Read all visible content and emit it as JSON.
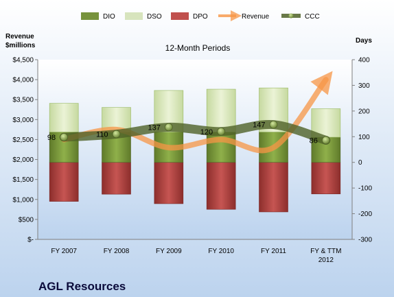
{
  "company": "AGL Resources",
  "chart_data": {
    "type": "bar",
    "title": "12-Month Periods",
    "categories": [
      "FY 2007",
      "FY 2008",
      "FY 2009",
      "FY 2010",
      "FY 2011",
      "FY & TTM 2012"
    ],
    "left_axis": {
      "label_line1": "Revenue",
      "label_line2": "$millions",
      "range": [
        0,
        4500
      ],
      "ticks": [
        {
          "v": 0,
          "t": "$-"
        },
        {
          "v": 500,
          "t": "$500"
        },
        {
          "v": 1000,
          "t": "$1,000"
        },
        {
          "v": 1500,
          "t": "$1,500"
        },
        {
          "v": 2000,
          "t": "$2,000"
        },
        {
          "v": 2500,
          "t": "$2,500"
        },
        {
          "v": 3000,
          "t": "$3,000"
        },
        {
          "v": 3500,
          "t": "$3,500"
        },
        {
          "v": 4000,
          "t": "$4,000"
        },
        {
          "v": 4500,
          "t": "$4,500"
        }
      ]
    },
    "right_axis": {
      "label": "Days",
      "range": [
        -300,
        400
      ],
      "ticks": [
        {
          "v": -300,
          "t": "-300"
        },
        {
          "v": -200,
          "t": "-200"
        },
        {
          "v": -100,
          "t": "-100"
        },
        {
          "v": 0,
          "t": "0"
        },
        {
          "v": 100,
          "t": "100"
        },
        {
          "v": 200,
          "t": "200"
        },
        {
          "v": 300,
          "t": "300"
        },
        {
          "v": 400,
          "t": "400"
        }
      ]
    },
    "series": [
      {
        "name": "DIO",
        "axis": "days",
        "color": "#77933c",
        "values": [
          118,
          118,
          118,
          118,
          118,
          98
        ]
      },
      {
        "name": "DSO",
        "axis": "days",
        "color": "#d7e4bd",
        "values": [
          112,
          96,
          162,
          167,
          172,
          111
        ]
      },
      {
        "name": "DPO",
        "axis": "days",
        "color": "#c0504d",
        "values": [
          -152,
          -124,
          -161,
          -183,
          -193,
          -123
        ]
      },
      {
        "name": "Revenue",
        "axis": "revenue",
        "color": "#f79646",
        "values": [
          2500,
          2750,
          2300,
          2500,
          2300,
          4000
        ]
      },
      {
        "name": "CCC",
        "axis": "days",
        "color": "#4f6228",
        "values": [
          98,
          110,
          137,
          120,
          147,
          86
        ]
      }
    ],
    "ccc_labels": [
      "98",
      "110",
      "137",
      "120",
      "147",
      "86"
    ],
    "grid": false,
    "legend_position": "top"
  },
  "colors": {
    "plot_top": "#ffffff",
    "plot_bottom": "#bcd3ee",
    "axis": "#7f7f7f"
  }
}
